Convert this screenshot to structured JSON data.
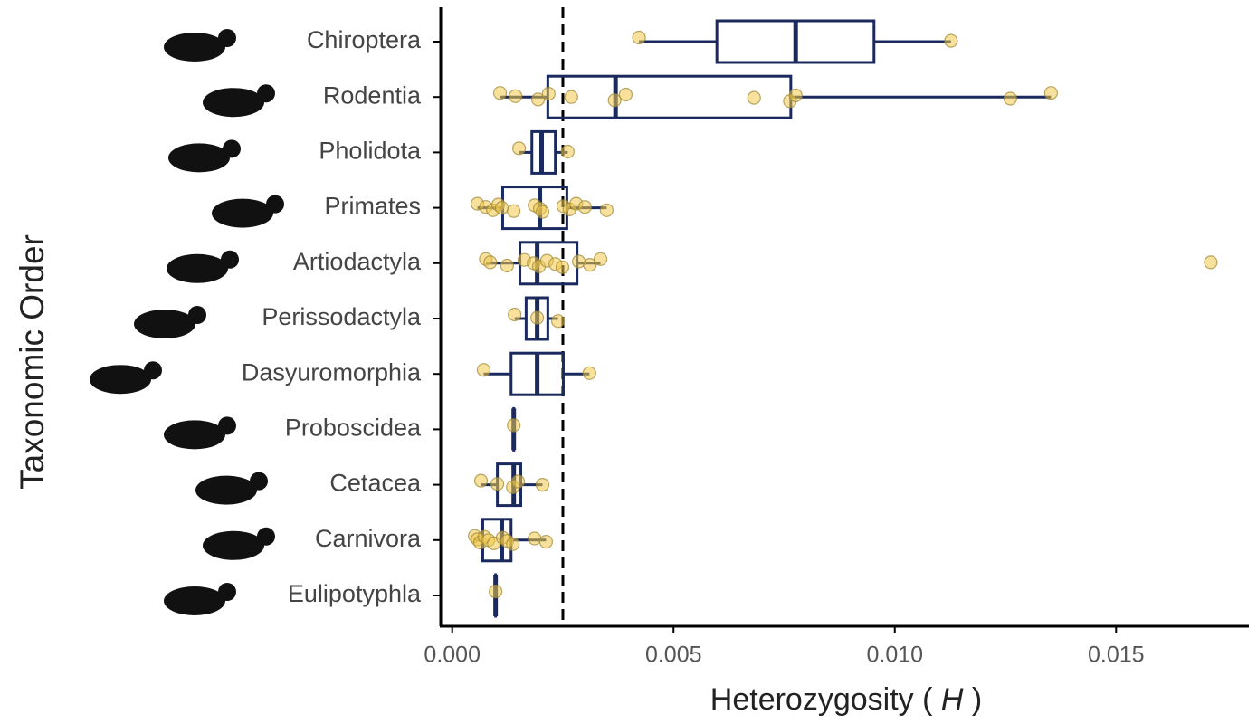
{
  "chart_data": {
    "type": "boxplot",
    "ylabel": "Taxonomic Order",
    "xlabel": [
      "Heterozygosity ( ",
      "H",
      " )"
    ],
    "categories": [
      "Chiroptera",
      "Rodentia",
      "Pholidota",
      "Primates",
      "Artiodactyla",
      "Perissodactyla",
      "Dasyuromorphia",
      "Proboscidea",
      "Cetacea",
      "Carnivora",
      "Eulipotyphla"
    ],
    "box_color": "#1b2a5e",
    "point_color": "#f0c84a",
    "xlim": [
      -0.00026,
      0.018
    ],
    "xticks": [
      {
        "value": 0,
        "label": "0.000"
      },
      {
        "value": 0.005,
        "label": "0.005"
      },
      {
        "value": 0.01,
        "label": "0.010"
      },
      {
        "value": 0.015,
        "label": "0.015"
      }
    ],
    "reference_line": 0.0025,
    "boxes": [
      {
        "min": 0.00422,
        "q1": 0.00598,
        "median": 0.00776,
        "q3": 0.00953,
        "max": 0.01127,
        "points": [
          0.00422,
          0.01127
        ]
      },
      {
        "min": 0.00108,
        "q1": 0.00216,
        "median": 0.00369,
        "q3": 0.00765,
        "max": 0.01353,
        "points": [
          0.00108,
          0.00143,
          0.00194,
          0.00218,
          0.00269,
          0.00367,
          0.00392,
          0.00682,
          0.00763,
          0.00776,
          0.01261,
          0.01353
        ]
      },
      {
        "min": 0.00151,
        "q1": 0.0018,
        "median": 0.00202,
        "q3": 0.00233,
        "max": 0.00261,
        "points": [
          0.00151,
          0.00261
        ]
      },
      {
        "min": 0.00057,
        "q1": 0.00114,
        "median": 0.00198,
        "q3": 0.00259,
        "max": 0.00349,
        "points": [
          0.00057,
          0.00076,
          0.00092,
          0.00104,
          0.00112,
          0.00139,
          0.00186,
          0.00198,
          0.00204,
          0.00251,
          0.00265,
          0.0028,
          0.003,
          0.00349
        ]
      },
      {
        "min": 0.00076,
        "q1": 0.00153,
        "median": 0.00192,
        "q3": 0.00282,
        "max": 0.00335,
        "points": [
          0.00076,
          0.00086,
          0.00124,
          0.00163,
          0.00184,
          0.00196,
          0.00214,
          0.00233,
          0.00249,
          0.00286,
          0.00311,
          0.00335,
          0.01714
        ]
      },
      {
        "min": 0.00141,
        "q1": 0.00167,
        "median": 0.00192,
        "q3": 0.00216,
        "max": 0.00239,
        "points": [
          0.00141,
          0.00192,
          0.00239
        ]
      },
      {
        "min": 0.00071,
        "q1": 0.00133,
        "median": 0.00192,
        "q3": 0.00251,
        "max": 0.0031,
        "points": [
          0.00071,
          0.0031
        ]
      },
      {
        "min": 0.00139,
        "q1": 0.00139,
        "median": 0.00139,
        "q3": 0.00139,
        "max": 0.00139,
        "points": [
          0.00139
        ]
      },
      {
        "min": 0.00065,
        "q1": 0.00102,
        "median": 0.00139,
        "q3": 0.00155,
        "max": 0.00204,
        "points": [
          0.00065,
          0.00102,
          0.00137,
          0.00149,
          0.00204
        ]
      },
      {
        "min": 0.00051,
        "q1": 0.00069,
        "median": 0.00112,
        "q3": 0.00133,
        "max": 0.00212,
        "points": [
          0.00051,
          0.00057,
          0.00063,
          0.00073,
          0.00082,
          0.00094,
          0.00114,
          0.00124,
          0.00137,
          0.00186,
          0.00212
        ]
      },
      {
        "min": 0.00098,
        "q1": 0.00098,
        "median": 0.00098,
        "q3": 0.00098,
        "max": 0.00098,
        "points": [
          0.00098
        ]
      }
    ]
  }
}
